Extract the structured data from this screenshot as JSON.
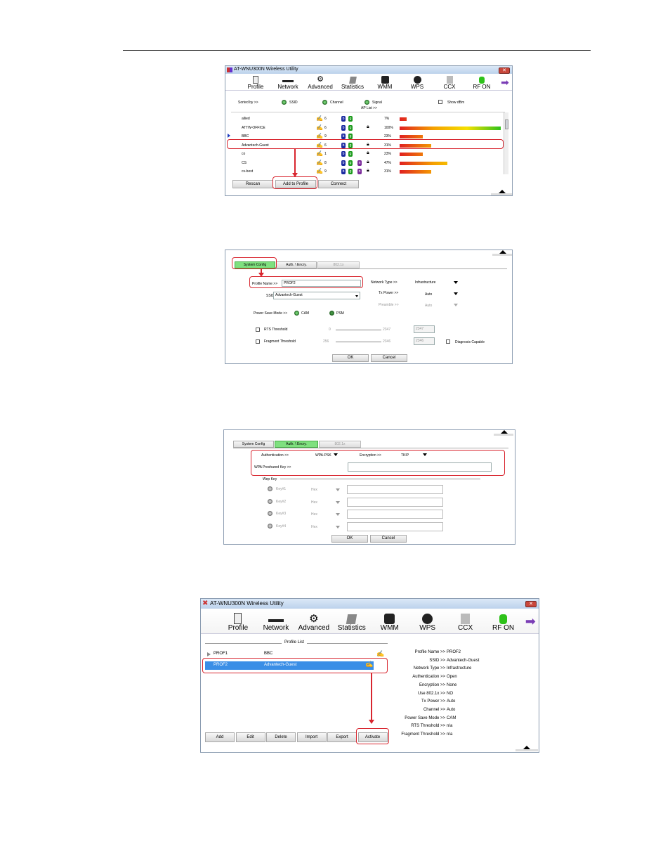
{
  "app_title": "AT-WNU300N Wireless Utility",
  "toolbar": [
    "Profile",
    "Network",
    "Advanced",
    "Statistics",
    "WMM",
    "WPS",
    "CCX",
    "RF ON"
  ],
  "net": {
    "sorted_by": "Sorted by >>",
    "ssid": "SSID",
    "channel": "Channel",
    "signal": "Signal",
    "ap_list": "AP List >>",
    "show_dbm": "Show dBm",
    "rows": [
      {
        "ssid": "allied",
        "ch": "6",
        "sig": "7%",
        "pct": 7,
        "lock": false
      },
      {
        "ssid": "ATTW-OFFICE",
        "ch": "6",
        "sig": "100%",
        "pct": 100,
        "lock": true
      },
      {
        "ssid": "BBC",
        "ch": "9",
        "sig": "23%",
        "pct": 23,
        "lock": false
      },
      {
        "ssid": "Advantech-Guest",
        "ch": "6",
        "sig": "31%",
        "pct": 31,
        "lock": true
      },
      {
        "ssid": "co",
        "ch": "1",
        "sig": "23%",
        "pct": 23,
        "lock": true
      },
      {
        "ssid": "CS",
        "ch": "8",
        "sig": "47%",
        "pct": 47,
        "lock": true
      },
      {
        "ssid": "cs-best",
        "ch": "9",
        "sig": "31%",
        "pct": 31,
        "lock": true
      }
    ],
    "btn_rescan": "Rescan",
    "btn_add": "Add to Profile",
    "btn_connect": "Connect"
  },
  "sys": {
    "tab1": "System Config",
    "tab2": "Auth. \\ Encry.",
    "tab3": "802.1x",
    "profile_name_label": "Profile Name >>",
    "profile_name": "PROF2",
    "ssid_label": "SSID >>",
    "ssid": "Advantech-Guest",
    "psm_label": "Power Save Mode >>",
    "cam": "CAM",
    "psm": "PSM",
    "rts": "RTS Threshold",
    "rts_min": "0",
    "rts_max": "2347",
    "rts_val": "2347",
    "frag": "Fragment Threshold",
    "frag_min": "256",
    "frag_max": "2346",
    "frag_val": "2346",
    "nettype_label": "Network Type >>",
    "nettype": "Infrastructure",
    "txpower_label": "Tx Power >>",
    "txpower": "Auto",
    "preamble_label": "Preamble >>",
    "preamble": "Auto",
    "diag": "Diagnosis Capable",
    "ok": "OK",
    "cancel": "Cancel"
  },
  "auth": {
    "tab1": "System Config",
    "tab2": "Auth. \\ Encry.",
    "tab3": "802.1x",
    "auth_label": "Authentication >>",
    "auth": "WPA-PSK",
    "enc_label": "Encryption >>",
    "enc": "TKIP",
    "wpa_label": "WPA Preshared Key >>",
    "wep_key": "Wep Key",
    "keys": [
      "Key#1",
      "Key#2",
      "Key#3",
      "Key#4"
    ],
    "hex": "Hex",
    "ok": "OK",
    "cancel": "Cancel"
  },
  "prof": {
    "list_title": "Profile List",
    "items": [
      {
        "name": "PROF1",
        "ssid": "BBC"
      },
      {
        "name": "PROF2",
        "ssid": "Advantech-Guest"
      }
    ],
    "buttons": [
      "Add",
      "Edit",
      "Delete",
      "Import",
      "Export",
      "Activate"
    ],
    "details": [
      {
        "k": "Profile Name >>",
        "v": "PROF2"
      },
      {
        "k": "SSID >>",
        "v": "Advantech-Guest"
      },
      {
        "k": "Network Type >>",
        "v": "Infrastructure"
      },
      {
        "k": "Authentication >>",
        "v": "Open"
      },
      {
        "k": "Encryption >>",
        "v": "None"
      },
      {
        "k": "Use 802.1x >>",
        "v": "NO"
      },
      {
        "k": "Tx Power >>",
        "v": "Auto"
      },
      {
        "k": "Channel >>",
        "v": "Auto"
      },
      {
        "k": "Power Save Mode >>",
        "v": "CAM"
      },
      {
        "k": "RTS Threshold >>",
        "v": "n/a"
      },
      {
        "k": "Fragment Threshold >>",
        "v": "n/a"
      }
    ]
  },
  "colors": {
    "accent_red": "#d8262f",
    "selection_blue": "#3a8ee6",
    "tab_green": "#7fe07f"
  }
}
